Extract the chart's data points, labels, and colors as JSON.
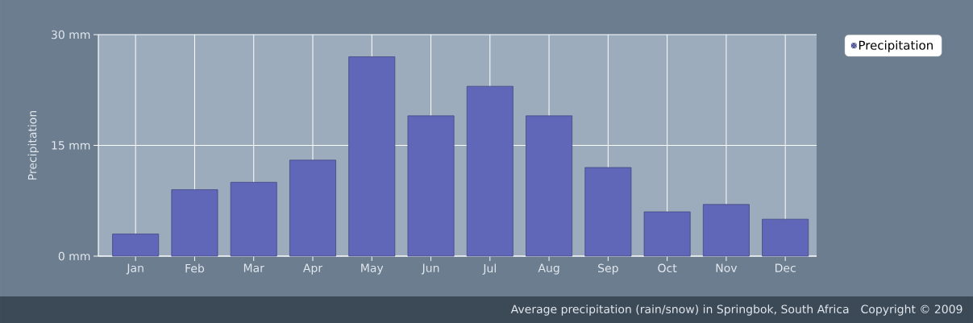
{
  "chart_data": {
    "type": "bar",
    "ylabel": "Precipitation",
    "categories": [
      "Jan",
      "Feb",
      "Mar",
      "Apr",
      "May",
      "Jun",
      "Jul",
      "Aug",
      "Sep",
      "Oct",
      "Nov",
      "Dec"
    ],
    "series": [
      {
        "name": "Precipitation",
        "color": "#6066b8",
        "values": [
          3,
          9,
          10,
          13,
          27,
          19,
          23,
          19,
          12,
          6,
          7,
          5
        ]
      }
    ],
    "ylim": [
      0,
      30
    ],
    "yticks": [
      {
        "value": 0,
        "label": "0 mm"
      },
      {
        "value": 15,
        "label": "15 mm"
      },
      {
        "value": 30,
        "label": "30 mm"
      }
    ],
    "grid": true,
    "legend": "top right",
    "annotations": [
      "Average precipitation (rain/snow) in Springbok, South Africa",
      "Copyright © 2009"
    ]
  }
}
